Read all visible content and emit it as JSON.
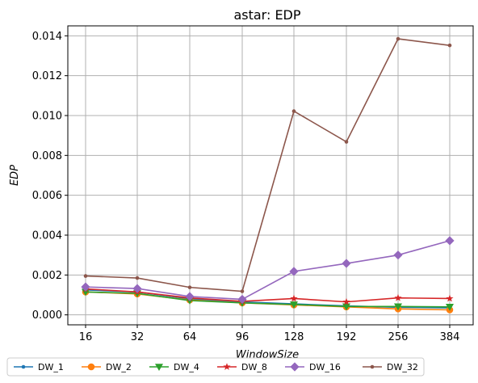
{
  "chart_data": {
    "type": "line",
    "title": "astar: EDP",
    "xlabel": "WindowSize",
    "ylabel": "EDP",
    "categories": [
      "16",
      "32",
      "64",
      "96",
      "128",
      "192",
      "256",
      "384"
    ],
    "ylim": [
      -0.0005,
      0.0145
    ],
    "yticks": [
      "0.000",
      "0.002",
      "0.004",
      "0.006",
      "0.008",
      "0.010",
      "0.012",
      "0.014"
    ],
    "grid": true,
    "legend_placement": "bottom",
    "series": [
      {
        "name": "DW_1",
        "color": "#1f77b4",
        "marker": "point",
        "values": [
          0.00125,
          0.00115,
          0.0008,
          0.00065,
          0.00055,
          0.00045,
          0.00038,
          0.00035
        ]
      },
      {
        "name": "DW_2",
        "color": "#ff7f0e",
        "marker": "circle",
        "values": [
          0.00115,
          0.00105,
          0.00075,
          0.0006,
          0.0005,
          0.0004,
          0.0003,
          0.00025
        ]
      },
      {
        "name": "DW_4",
        "color": "#2ca02c",
        "marker": "triangle-down",
        "values": [
          0.00115,
          0.00108,
          0.00072,
          0.0006,
          0.00052,
          0.00042,
          0.00042,
          0.0004
        ]
      },
      {
        "name": "DW_8",
        "color": "#d62728",
        "marker": "star",
        "values": [
          0.0013,
          0.00115,
          0.00085,
          0.00068,
          0.00082,
          0.00065,
          0.00085,
          0.00082
        ]
      },
      {
        "name": "DW_16",
        "color": "#9467bd",
        "marker": "diamond",
        "values": [
          0.0014,
          0.00132,
          0.00092,
          0.00078,
          0.00218,
          0.00258,
          0.003,
          0.00372
        ]
      },
      {
        "name": "DW_32",
        "color": "#8c564b",
        "marker": "point",
        "values": [
          0.00195,
          0.00185,
          0.00138,
          0.00118,
          0.01022,
          0.00868,
          0.01385,
          0.01352
        ]
      }
    ]
  }
}
